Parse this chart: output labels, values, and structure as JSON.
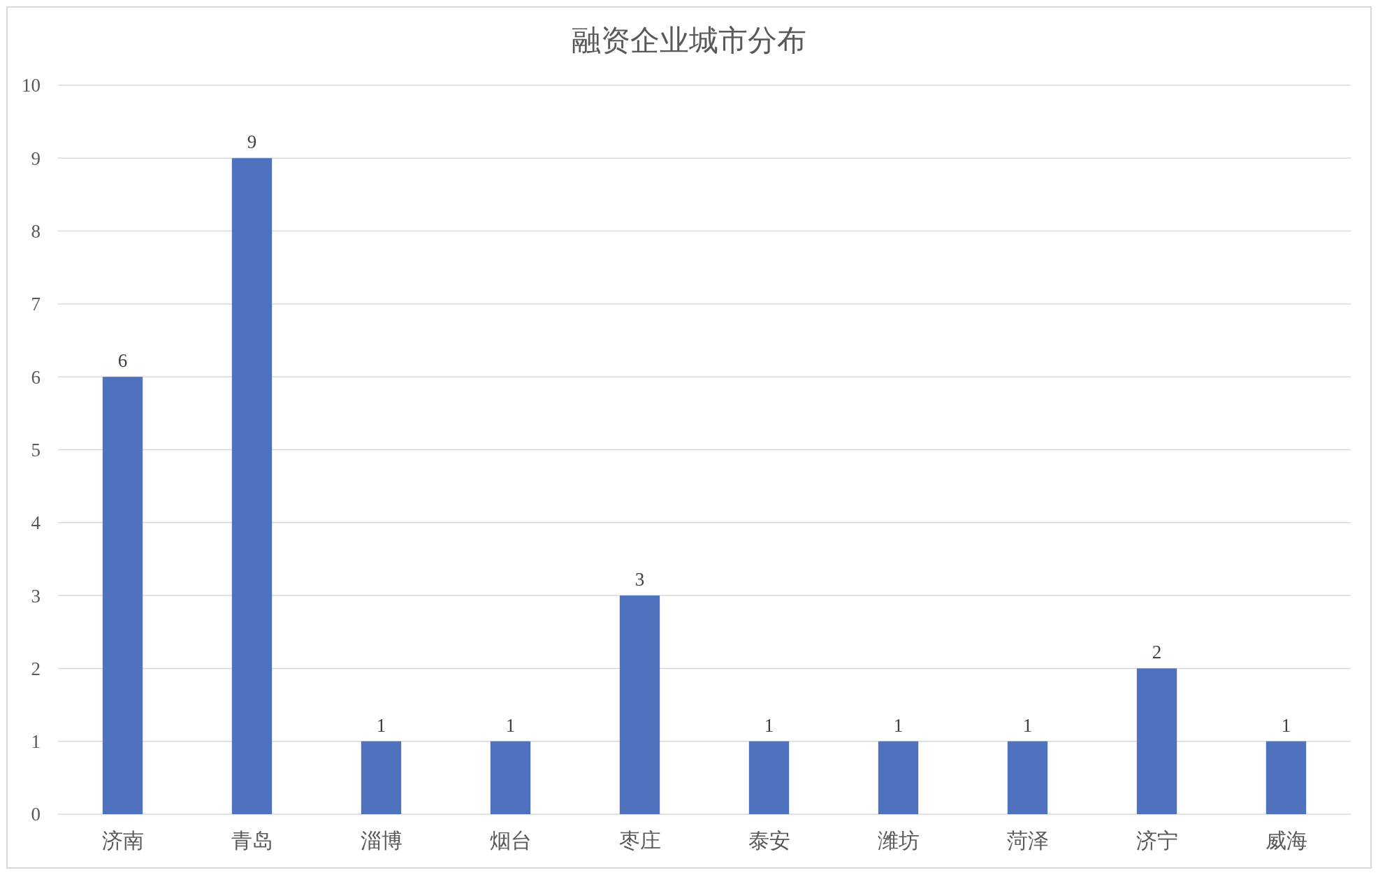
{
  "chart_data": {
    "type": "bar",
    "title": "融资企业城市分布",
    "categories": [
      "济南",
      "青岛",
      "淄博",
      "烟台",
      "枣庄",
      "泰安",
      "潍坊",
      "菏泽",
      "济宁",
      "威海"
    ],
    "values": [
      6,
      9,
      1,
      1,
      3,
      1,
      1,
      1,
      2,
      1
    ],
    "color": "#4e72be",
    "ylim": [
      0,
      10
    ],
    "yticks": [
      0,
      1,
      2,
      3,
      4,
      5,
      6,
      7,
      8,
      9,
      10
    ],
    "grid": "y",
    "data_labels": true
  }
}
